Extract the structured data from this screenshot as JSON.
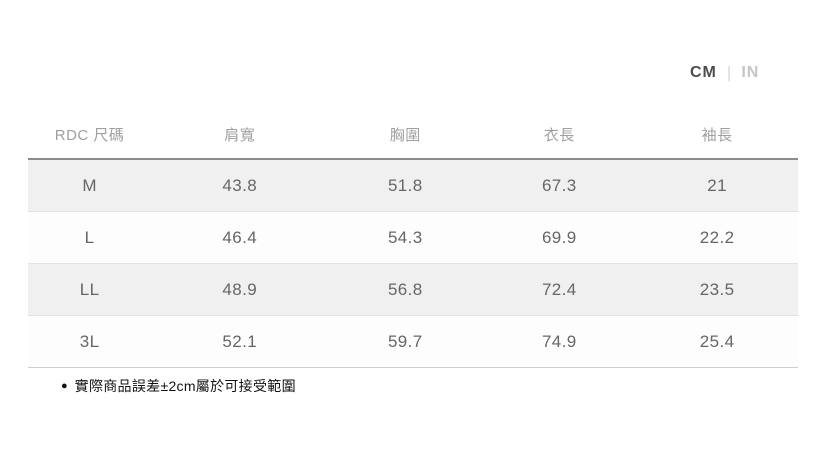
{
  "unit_toggle": {
    "cm_label": "CM",
    "in_label": "IN",
    "divider": "|",
    "selected": "CM"
  },
  "size_table": {
    "columns": [
      "RDC 尺碼",
      "肩寬",
      "胸圍",
      "衣長",
      "袖長"
    ],
    "rows": [
      {
        "cells": [
          "M",
          "43.8",
          "51.8",
          "67.3",
          "21"
        ]
      },
      {
        "cells": [
          "L",
          "46.4",
          "54.3",
          "69.9",
          "22.2"
        ]
      },
      {
        "cells": [
          "LL",
          "48.9",
          "56.8",
          "72.4",
          "23.5"
        ]
      },
      {
        "cells": [
          "3L",
          "52.1",
          "59.7",
          "74.9",
          "25.4"
        ]
      }
    ]
  },
  "footnote": {
    "bullet": "●",
    "text": "實際商品誤差±2cm屬於可接受範圍"
  },
  "colors": {
    "active_unit": "#4d4d4d",
    "inactive_unit": "#c6c6c6",
    "header_text": "#a0a0a0",
    "cell_text": "#666666",
    "stripe_row_bg": "#f0f0f0",
    "table_top_border": "#8c8c8c"
  }
}
